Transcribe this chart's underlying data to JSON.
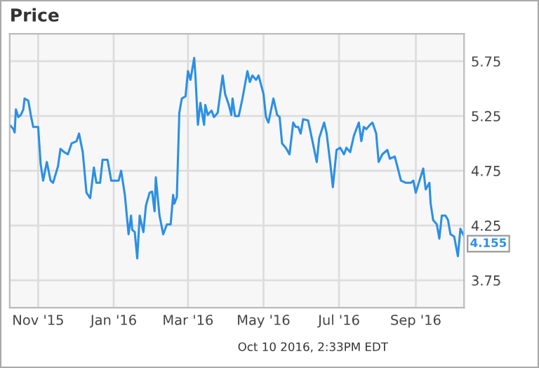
{
  "chart_data": {
    "type": "line",
    "title": "Price",
    "x": [
      "2015-10-09",
      "2015-10-12",
      "2015-10-13",
      "2015-10-14",
      "2015-10-16",
      "2015-10-18",
      "2015-10-20",
      "2015-10-21",
      "2015-10-24",
      "2015-10-26",
      "2015-10-28",
      "2015-11-01",
      "2015-11-03",
      "2015-11-05",
      "2015-11-08",
      "2015-11-11",
      "2015-11-13",
      "2015-11-17",
      "2015-11-19",
      "2015-11-22",
      "2015-11-25",
      "2015-11-28",
      "2015-12-02",
      "2015-12-04",
      "2015-12-07",
      "2015-12-10",
      "2015-12-13",
      "2015-12-16",
      "2015-12-18",
      "2015-12-21",
      "2015-12-23",
      "2015-12-27",
      "2015-12-30",
      "2016-01-05",
      "2016-01-07",
      "2016-01-10",
      "2016-01-13",
      "2016-01-15",
      "2016-01-16",
      "2016-01-18",
      "2016-01-20",
      "2016-01-22",
      "2016-01-25",
      "2016-01-27",
      "2016-01-30",
      "2016-02-01",
      "2016-02-03",
      "2016-02-04",
      "2016-02-07",
      "2016-02-10",
      "2016-02-13",
      "2016-02-16",
      "2016-02-18",
      "2016-02-19",
      "2016-02-21",
      "2016-02-23",
      "2016-02-25",
      "2016-02-28",
      "2016-03-01",
      "2016-03-03",
      "2016-03-06",
      "2016-03-07",
      "2016-03-09",
      "2016-03-11",
      "2016-03-14",
      "2016-03-15",
      "2016-03-17",
      "2016-03-20",
      "2016-03-22",
      "2016-03-25",
      "2016-03-29",
      "2016-03-31",
      "2016-04-03",
      "2016-04-05",
      "2016-04-06",
      "2016-04-08",
      "2016-04-11",
      "2016-04-14",
      "2016-04-18",
      "2016-04-20",
      "2016-04-22",
      "2016-04-25",
      "2016-04-27",
      "2016-05-01",
      "2016-05-03",
      "2016-05-05",
      "2016-05-09",
      "2016-05-12",
      "2016-05-14",
      "2016-05-16",
      "2016-05-19",
      "2016-05-22",
      "2016-05-25",
      "2016-05-27",
      "2016-05-29",
      "2016-05-31",
      "2016-06-02",
      "2016-06-06",
      "2016-06-09",
      "2016-06-13",
      "2016-06-15",
      "2016-06-19",
      "2016-06-21",
      "2016-06-24",
      "2016-06-26",
      "2016-06-29",
      "2016-07-02",
      "2016-07-05",
      "2016-07-07",
      "2016-07-10",
      "2016-07-13",
      "2016-07-17",
      "2016-07-19",
      "2016-07-21",
      "2016-07-23",
      "2016-07-26",
      "2016-07-28",
      "2016-07-31",
      "2016-08-02",
      "2016-08-05",
      "2016-08-09",
      "2016-08-11",
      "2016-08-15",
      "2016-08-18",
      "2016-08-20",
      "2016-08-24",
      "2016-08-28",
      "2016-08-30",
      "2016-09-01",
      "2016-09-04",
      "2016-09-07",
      "2016-09-09",
      "2016-09-12",
      "2016-09-13",
      "2016-09-15",
      "2016-09-18",
      "2016-09-20",
      "2016-09-22",
      "2016-09-25",
      "2016-09-27",
      "2016-09-29",
      "2016-10-02",
      "2016-10-05",
      "2016-10-07",
      "2016-10-10"
    ],
    "series": [
      {
        "color": "#2b8fe6",
        "values": [
          5.17,
          5.13,
          5.1,
          5.31,
          5.24,
          5.26,
          5.31,
          5.41,
          5.39,
          5.26,
          5.15,
          5.15,
          4.81,
          4.66,
          4.83,
          4.66,
          4.64,
          4.79,
          4.95,
          4.92,
          4.9,
          5.0,
          5.02,
          5.09,
          4.92,
          4.55,
          4.5,
          4.78,
          4.64,
          4.64,
          4.85,
          4.85,
          4.66,
          4.66,
          4.75,
          4.53,
          4.17,
          4.34,
          4.21,
          4.19,
          3.95,
          4.34,
          4.19,
          4.43,
          4.55,
          4.56,
          4.38,
          4.69,
          4.34,
          4.17,
          4.26,
          4.26,
          4.53,
          4.45,
          4.51,
          5.28,
          5.41,
          5.43,
          5.66,
          5.58,
          5.78,
          5.62,
          5.17,
          5.37,
          5.17,
          5.35,
          5.26,
          5.3,
          5.24,
          5.28,
          5.62,
          5.45,
          5.35,
          5.26,
          5.41,
          5.25,
          5.25,
          5.41,
          5.66,
          5.56,
          5.62,
          5.58,
          5.62,
          5.45,
          5.24,
          5.19,
          5.41,
          5.26,
          5.24,
          5.0,
          4.96,
          4.9,
          5.19,
          5.15,
          5.15,
          5.09,
          5.22,
          5.21,
          5.05,
          4.83,
          5.05,
          5.19,
          5.09,
          4.81,
          4.6,
          4.94,
          4.96,
          4.9,
          4.96,
          4.92,
          5.07,
          5.19,
          5.02,
          5.15,
          5.13,
          5.17,
          5.19,
          5.09,
          4.83,
          4.9,
          4.94,
          4.86,
          4.88,
          4.75,
          4.66,
          4.64,
          4.64,
          4.66,
          4.55,
          4.66,
          4.77,
          4.58,
          4.64,
          4.45,
          4.3,
          4.26,
          4.13,
          4.34,
          4.34,
          4.3,
          4.17,
          4.15,
          3.97,
          4.22,
          4.155
        ]
      }
    ],
    "xlim": [
      "2015-10-09",
      "2016-10-10"
    ],
    "xticks": [
      {
        "value": "2015-11-01",
        "label": "Nov '15"
      },
      {
        "value": "2016-01-01",
        "label": "Jan '16"
      },
      {
        "value": "2016-03-01",
        "label": "Mar '16"
      },
      {
        "value": "2016-05-01",
        "label": "May '16"
      },
      {
        "value": "2016-07-01",
        "label": "Jul '16"
      },
      {
        "value": "2016-09-01",
        "label": "Sep '16"
      }
    ],
    "ylim": [
      3.5,
      6.0
    ],
    "yticks": [
      3.75,
      4.25,
      4.75,
      5.25,
      5.75
    ],
    "grid": true,
    "annotations": [
      {
        "text": "4.155",
        "x": "2016-10-10",
        "y": 4.155
      },
      "Oct 10 2016, 2:33PM EDT"
    ]
  }
}
